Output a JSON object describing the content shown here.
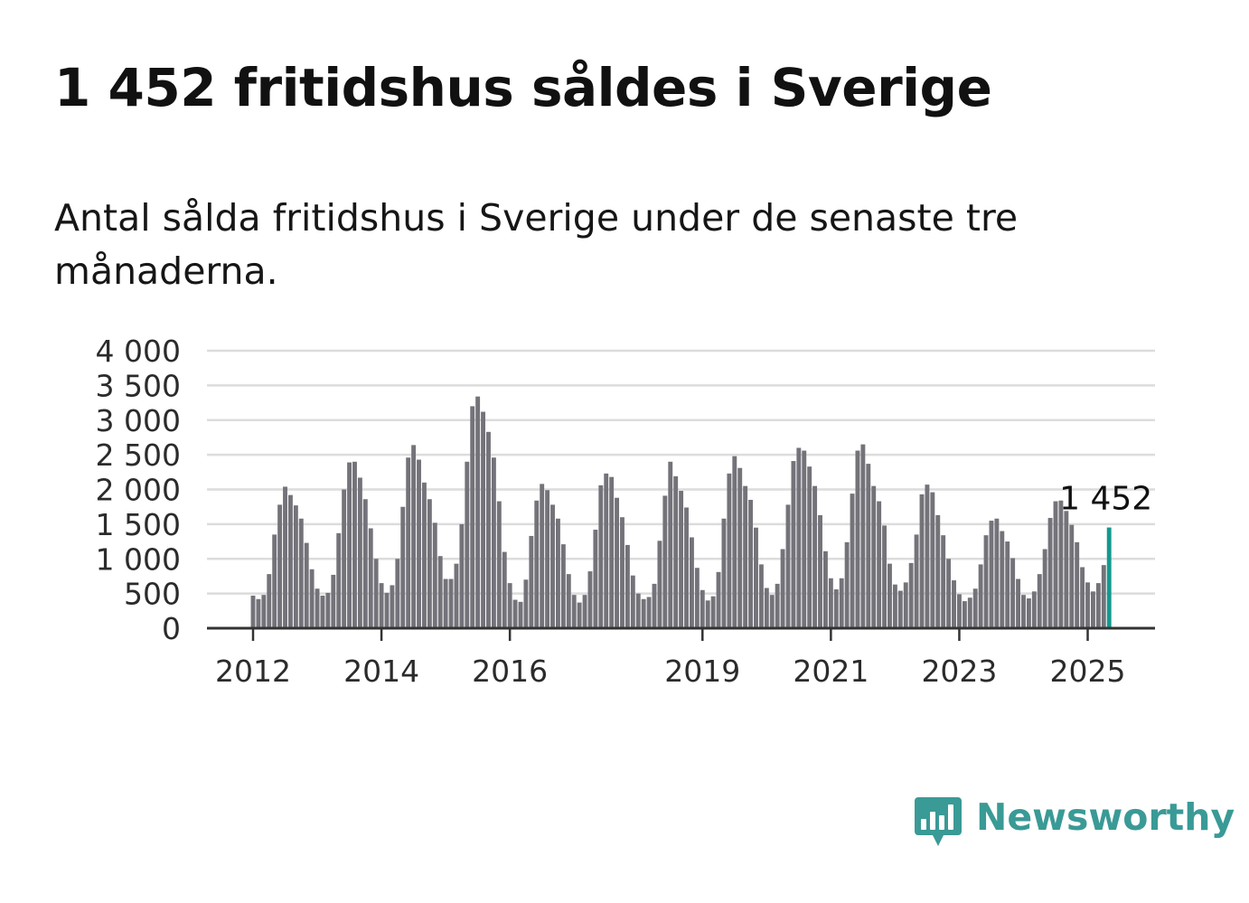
{
  "header": {
    "title": "1 452 fritidshus såldes i Sverige",
    "subtitle": "Antal sålda fritidshus i Sverige under de senaste tre månaderna."
  },
  "brand": {
    "name": "Newsworthy",
    "color": "#3a9a96"
  },
  "colors": {
    "bar": "#74737a",
    "highlight": "#13998f",
    "grid": "#dcdcdc"
  },
  "chart_data": {
    "type": "bar",
    "title": "1 452 fritidshus såldes i Sverige",
    "subtitle": "Antal sålda fritidshus i Sverige under de senaste tre månaderna.",
    "x_start": "2012-01",
    "frequency": "monthly",
    "ylim": [
      0,
      4000
    ],
    "yticks": [
      0,
      500,
      1000,
      1500,
      2000,
      2500,
      3000,
      3500,
      4000
    ],
    "ytick_labels": [
      "0",
      "500",
      "1 000",
      "1 500",
      "2 000",
      "2 500",
      "3 000",
      "3 500",
      "4 000"
    ],
    "xtick_labels": [
      "2012",
      "2014",
      "2016",
      "2019",
      "2021",
      "2023",
      "2025"
    ],
    "grid": true,
    "last_value_label": "1 452",
    "values": [
      470,
      420,
      480,
      780,
      1350,
      1780,
      2040,
      1920,
      1770,
      1580,
      1230,
      850,
      570,
      470,
      510,
      770,
      1370,
      2000,
      2390,
      2400,
      2170,
      1860,
      1440,
      1000,
      650,
      510,
      620,
      1000,
      1750,
      2460,
      2640,
      2430,
      2100,
      1860,
      1520,
      1040,
      710,
      710,
      930,
      1500,
      2400,
      3200,
      3340,
      3120,
      2830,
      2460,
      1830,
      1100,
      650,
      410,
      380,
      700,
      1330,
      1840,
      2080,
      1990,
      1780,
      1580,
      1210,
      780,
      480,
      370,
      480,
      820,
      1420,
      2060,
      2230,
      2180,
      1880,
      1600,
      1200,
      760,
      500,
      420,
      450,
      640,
      1260,
      1910,
      2400,
      2190,
      1980,
      1740,
      1310,
      870,
      550,
      400,
      460,
      810,
      1580,
      2230,
      2480,
      2310,
      2050,
      1850,
      1450,
      920,
      580,
      480,
      640,
      1140,
      1780,
      2410,
      2600,
      2560,
      2330,
      2050,
      1630,
      1110,
      720,
      560,
      720,
      1240,
      1940,
      2560,
      2650,
      2370,
      2050,
      1830,
      1480,
      930,
      630,
      540,
      660,
      940,
      1350,
      1930,
      2070,
      1960,
      1630,
      1340,
      1000,
      690,
      490,
      390,
      440,
      570,
      920,
      1340,
      1550,
      1580,
      1400,
      1250,
      1010,
      710,
      480,
      430,
      530,
      780,
      1140,
      1590,
      1830,
      1840,
      1690,
      1490,
      1240,
      880,
      660,
      530,
      650,
      910,
      1452
    ]
  }
}
